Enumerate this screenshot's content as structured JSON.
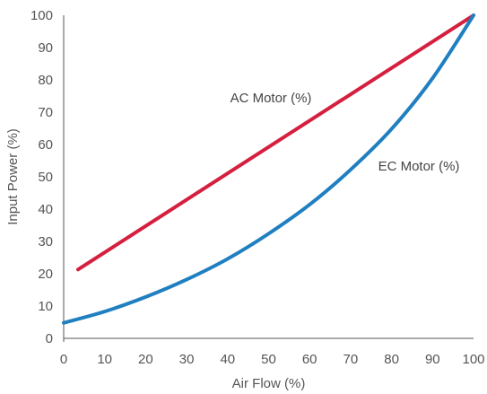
{
  "chart_data": {
    "type": "line",
    "title": "",
    "xlabel": "Air Flow (%)",
    "ylabel": "Input Power (%)",
    "xlim": [
      0,
      100
    ],
    "ylim": [
      0,
      100
    ],
    "x_ticks": [
      "0",
      "10",
      "20",
      "30",
      "40",
      "50",
      "60",
      "70",
      "80",
      "90",
      "100"
    ],
    "y_ticks": [
      "0",
      "10",
      "20",
      "30",
      "40",
      "50",
      "60",
      "70",
      "80",
      "90",
      "100"
    ],
    "grid": false,
    "axis_color": "#555555",
    "series": [
      {
        "name": "AC Motor (%)",
        "color": "#d61f3f",
        "x": [
          3.5,
          100
        ],
        "y": [
          21.3,
          100
        ]
      },
      {
        "name": "EC Motor (%)",
        "color": "#1f7fc1",
        "x": [
          0,
          10,
          20,
          30,
          40,
          50,
          60,
          70,
          80,
          90,
          100
        ],
        "y": [
          4.8,
          8.3,
          12.8,
          18.2,
          24.6,
          32.4,
          41.4,
          52.2,
          64.8,
          80.5,
          100
        ]
      }
    ]
  }
}
